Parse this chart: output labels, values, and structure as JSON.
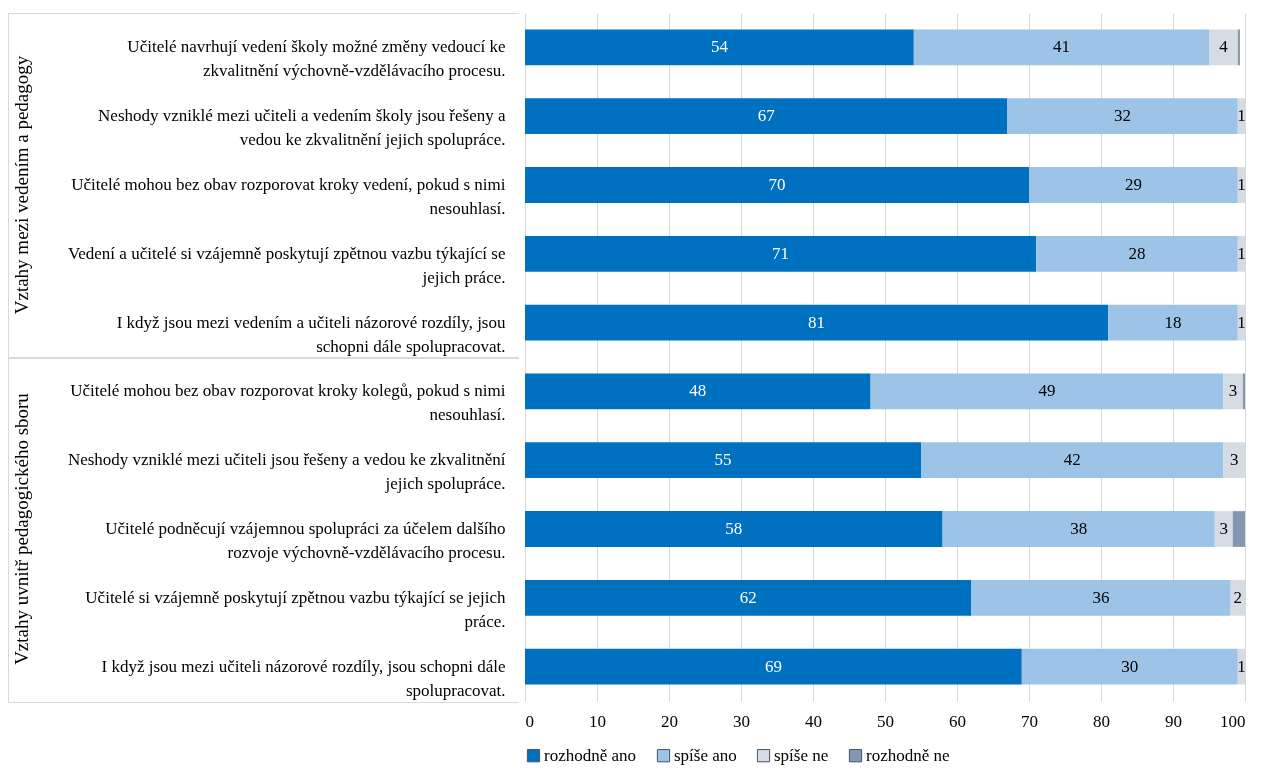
{
  "chart_data": {
    "type": "bar",
    "orientation": "horizontal",
    "stacked": true,
    "categories": [
      "Učitelé navrhují vedení školy možné změny vedoucí ke zkvalitnění výchovně-vzdělávacího procesu.",
      "Neshody vzniklé mezi učiteli a vedením školy jsou řešeny a vedou ke zkvalitnění jejich spolupráce.",
      "Učitelé mohou bez obav rozporovat kroky vedení, pokud s nimi nesouhlasí.",
      "Vedení a učitelé si vzájemně poskytují zpětnou vazbu týkající se jejich práce.",
      "I když jsou mezi vedením a učiteli názorové rozdíly, jsou schopni dále spolupracovat.",
      "Učitelé mohou bez obav rozporovat kroky kolegů, pokud s nimi nesouhlasí.",
      "Neshody vzniklé mezi učiteli jsou řešeny a vedou ke zkvalitnění jejich spolupráce.",
      "Učitelé podněcují vzájemnou spolupráci za účelem dalšího rozvoje výchovně-vzdělávacího procesu.",
      "Učitelé si vzájemně poskytují zpětnou vazbu týkající se jejich práce.",
      "I když jsou mezi učiteli názorové rozdíly, jsou schopni dále spolupracovat."
    ],
    "series": [
      {
        "name": "rozhodně ano",
        "color": "#0070c0",
        "values": [
          54,
          67,
          70,
          71,
          81,
          48,
          55,
          58,
          62,
          69
        ],
        "value_labels": [
          "54",
          "67",
          "70",
          "71",
          "81",
          "48",
          "55",
          "58",
          "62",
          "69"
        ]
      },
      {
        "name": "spíše ano",
        "color": "#9dc3e6",
        "values": [
          41,
          32,
          29,
          28,
          18,
          49,
          42,
          37.8,
          36,
          30
        ],
        "value_labels": [
          "41",
          "32",
          "29",
          "28",
          "18",
          "49",
          "42",
          "38",
          "36",
          "30"
        ]
      },
      {
        "name": "spíše ne",
        "color": "#d6dce4",
        "values": [
          4,
          1,
          1,
          1,
          1,
          2.7,
          3,
          2.5,
          2,
          1
        ],
        "value_labels": [
          "4",
          "1",
          "1",
          "1",
          "1",
          "3",
          "3",
          "3",
          "2",
          "1"
        ]
      },
      {
        "name": "rozhodně ne",
        "color": "#8497b0",
        "values": [
          0.3,
          null,
          null,
          null,
          null,
          0.3,
          null,
          1.7,
          null,
          null
        ],
        "value_labels": [
          null,
          null,
          null,
          null,
          null,
          null,
          null,
          null,
          null,
          null
        ]
      }
    ],
    "xlim": [
      0,
      100
    ],
    "xticks": [
      0,
      10,
      20,
      30,
      40,
      50,
      60,
      70,
      80,
      90,
      100
    ],
    "grid": "x",
    "legend": "bottom",
    "annotations": [
      "Vztahy mezi vedením a pedagogy",
      "Vztahy uvnitř pedagogického sboru"
    ]
  }
}
